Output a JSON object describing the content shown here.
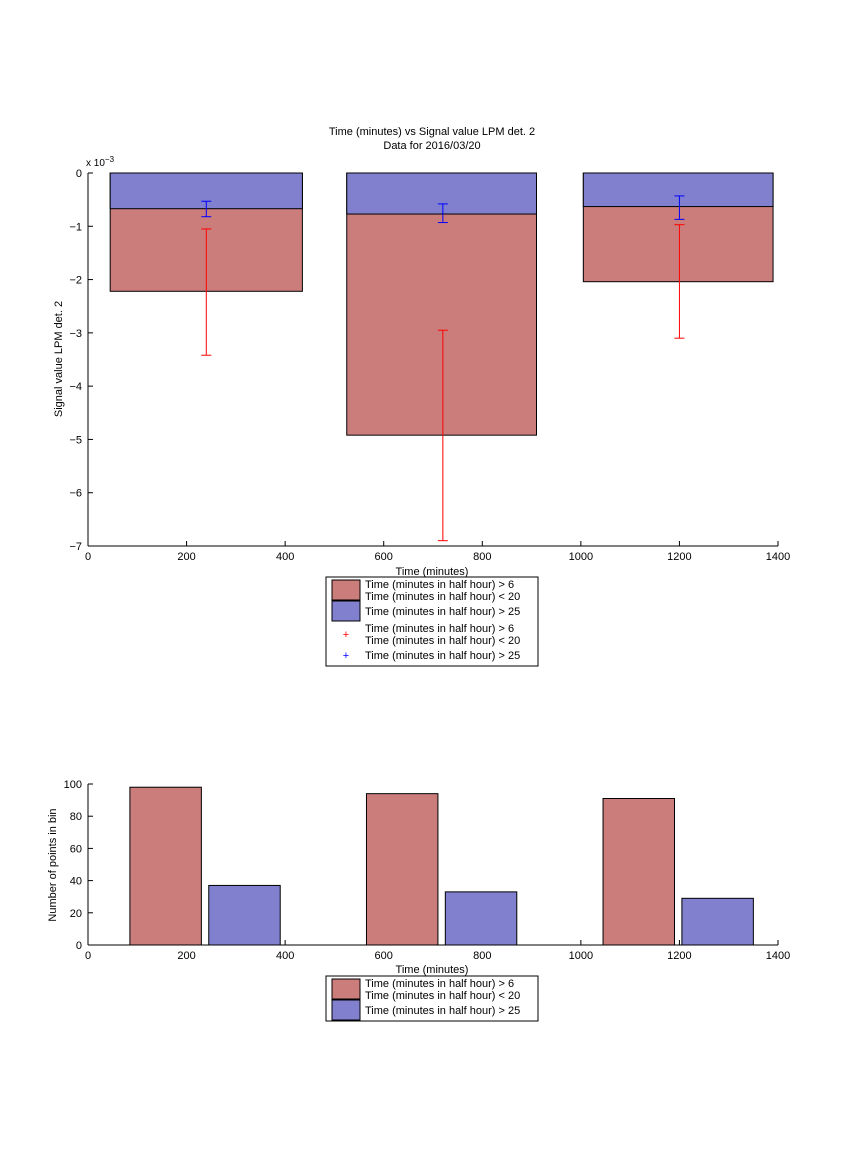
{
  "chart_data": [
    {
      "type": "bar",
      "title": "Time (minutes) vs Signal value LPM det. 2",
      "subtitle": "Data for 2016/03/20",
      "xlabel": "Time (minutes)",
      "ylabel": "Signal value LPM det. 2",
      "exponent_label": "x 10",
      "exponent_power": "−3",
      "xlim": [
        0,
        1400
      ],
      "ylim": [
        -7,
        0
      ],
      "x_ticks": [
        "0",
        "200",
        "400",
        "600",
        "800",
        "1000",
        "1200",
        "1400"
      ],
      "y_ticks": [
        "0",
        "−1",
        "−2",
        "−3",
        "−4",
        "−5",
        "−6",
        "−7"
      ],
      "bars": [
        {
          "x_start": 45,
          "x_end": 435,
          "red_value": -2.22,
          "blue_value": -0.67
        },
        {
          "x_start": 525,
          "x_end": 910,
          "red_value": -4.92,
          "blue_value": -0.77
        },
        {
          "x_start": 1005,
          "x_end": 1390,
          "red_value": -2.04,
          "blue_value": -0.63
        }
      ],
      "error_bars": [
        {
          "series": "red",
          "x": 240,
          "low": -3.42,
          "high": -1.05
        },
        {
          "series": "red",
          "x": 720,
          "low": -6.9,
          "high": -2.95
        },
        {
          "series": "red",
          "x": 1200,
          "low": -3.1,
          "high": -0.97
        },
        {
          "series": "blue",
          "x": 240,
          "low": -0.82,
          "high": -0.53
        },
        {
          "series": "blue",
          "x": 720,
          "low": -0.93,
          "high": -0.58
        },
        {
          "series": "blue",
          "x": 1200,
          "low": -0.87,
          "high": -0.43
        }
      ],
      "legend": [
        {
          "kind": "patch",
          "color": "#cb7d7c",
          "line1": "Time (minutes in half hour) > 6",
          "line2": "Time (minutes in half hour) < 20"
        },
        {
          "kind": "patch",
          "color": "#8080cf",
          "line1": "Time (minutes in half hour) > 25",
          "line2": ""
        },
        {
          "kind": "marker",
          "color": "#ff0000",
          "line1": "Time (minutes in half hour) > 6",
          "line2": "Time (minutes in half hour) < 20"
        },
        {
          "kind": "marker",
          "color": "#0000ff",
          "line1": "Time (minutes in half hour) > 25",
          "line2": ""
        }
      ],
      "legend_position": "below",
      "colors": {
        "red_fill": "#cb7d7c",
        "blue_fill": "#8080cf",
        "red_err": "#ff0000",
        "blue_err": "#0000ff"
      }
    },
    {
      "type": "bar",
      "xlabel": "Time (minutes)",
      "ylabel": "Number of points in bin",
      "xlim": [
        0,
        1400
      ],
      "ylim": [
        0,
        100
      ],
      "x_ticks": [
        "0",
        "200",
        "400",
        "600",
        "800",
        "1000",
        "1200",
        "1400"
      ],
      "y_ticks": [
        "0",
        "20",
        "40",
        "60",
        "80",
        "100"
      ],
      "bars": [
        {
          "series": "red",
          "x_start": 85,
          "x_end": 230,
          "value": 98
        },
        {
          "series": "blue",
          "x_start": 245,
          "x_end": 390,
          "value": 37
        },
        {
          "series": "red",
          "x_start": 565,
          "x_end": 710,
          "value": 94
        },
        {
          "series": "blue",
          "x_start": 725,
          "x_end": 870,
          "value": 33
        },
        {
          "series": "red",
          "x_start": 1045,
          "x_end": 1190,
          "value": 91
        },
        {
          "series": "blue",
          "x_start": 1205,
          "x_end": 1350,
          "value": 29
        }
      ],
      "legend": [
        {
          "kind": "patch",
          "color": "#cb7d7c",
          "line1": "Time (minutes in half hour) > 6",
          "line2": "Time (minutes in half hour) < 20"
        },
        {
          "kind": "patch",
          "color": "#8080cf",
          "line1": "Time (minutes in half hour) > 25",
          "line2": ""
        }
      ],
      "legend_position": "below",
      "colors": {
        "red_fill": "#cb7d7c",
        "blue_fill": "#8080cf"
      }
    }
  ]
}
